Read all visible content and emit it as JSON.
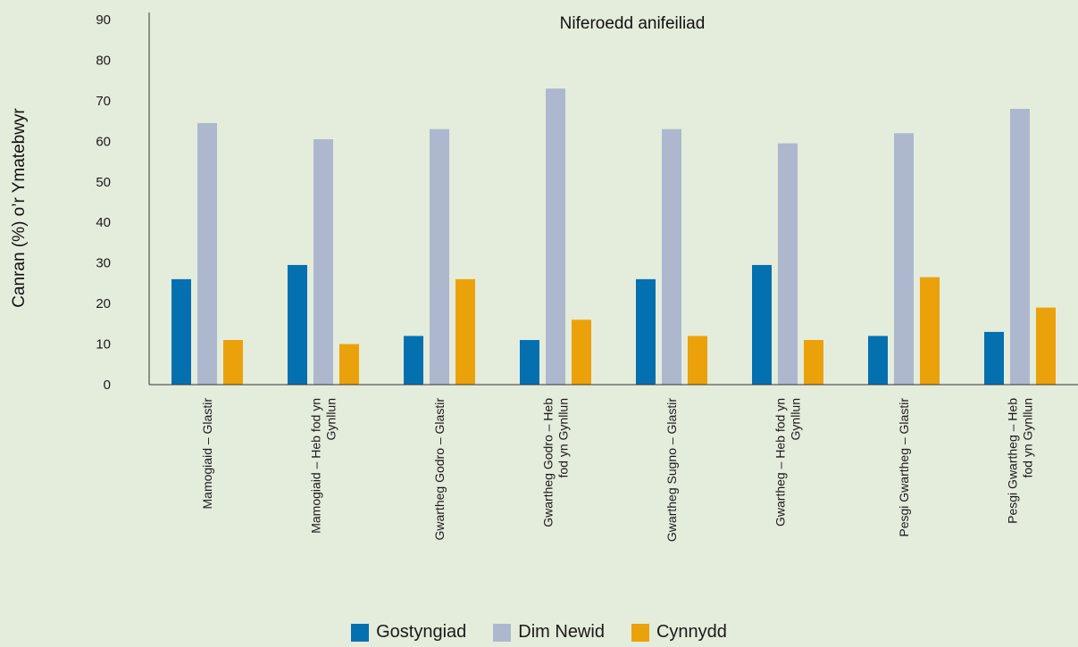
{
  "chart_data": {
    "type": "bar",
    "title": "Niferoedd anifeiliad",
    "xlabel": "",
    "ylabel": "Canran (%) o’r Ymatebwyr",
    "ylim": [
      0,
      90
    ],
    "yticks": [
      "0",
      "10",
      "20",
      "30",
      "40",
      "50",
      "60",
      "70",
      "80",
      "90"
    ],
    "grid": false,
    "legend_position": "bottom",
    "categories": [
      [
        "Mamogiaid – Glastir"
      ],
      [
        "Mamogiaid – Heb fod yn",
        "Gynllun"
      ],
      [
        "Gwartheg Godro – Glastir"
      ],
      [
        "Gwartheg Godro – Heb",
        "fod yn Gynllun"
      ],
      [
        "Gwartheg Sugno – Glastir"
      ],
      [
        "Gwartheg – Heb fod yn",
        "Gynllun"
      ],
      [
        "Pesgi Gwartheg – Glastir"
      ],
      [
        "Pesgi Gwartheg – Heb",
        "fod yn Gynllun"
      ]
    ],
    "series": [
      {
        "name": "Gostyngiad",
        "color": "#0570b0",
        "values": [
          26,
          29.5,
          12,
          11,
          26,
          29.5,
          12,
          13
        ]
      },
      {
        "name": "Dim Newid",
        "color": "#adb8ce",
        "values": [
          64.5,
          60.5,
          63,
          73,
          63,
          59.5,
          62,
          68
        ]
      },
      {
        "name": "Cynnydd",
        "color": "#eba20a",
        "values": [
          11,
          10,
          26,
          16,
          12,
          11,
          26.5,
          19
        ]
      }
    ]
  }
}
